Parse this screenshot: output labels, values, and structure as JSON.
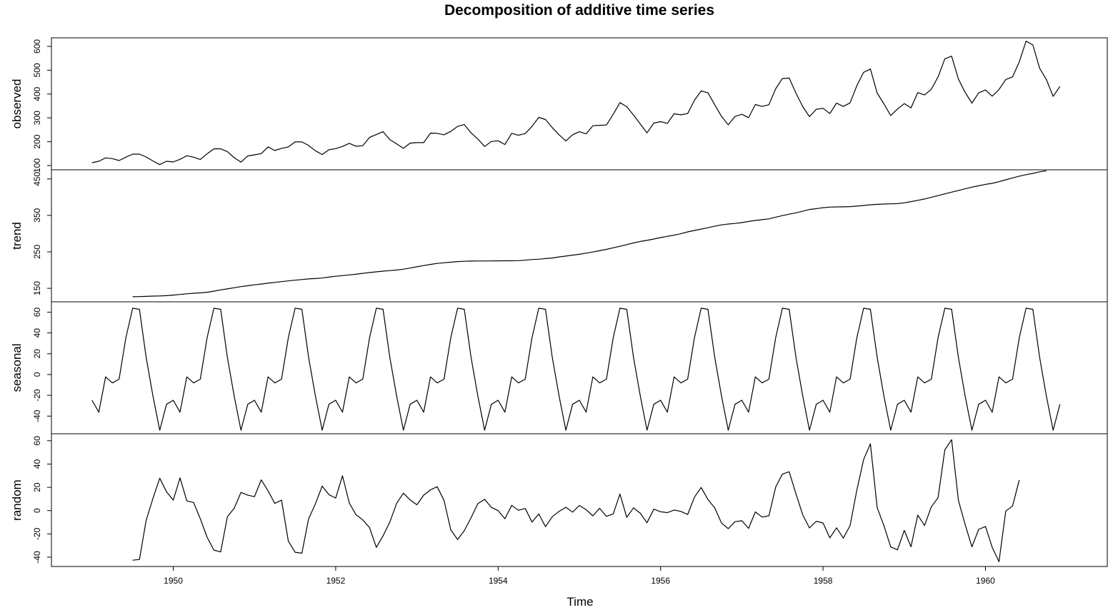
{
  "chart_data": {
    "type": "line",
    "title": "Decomposition of additive time series",
    "xlabel": "Time",
    "x_start": 1949,
    "frequency": 12,
    "xlim": [
      1948.5,
      1961.5
    ],
    "x_ticks": [
      1950,
      1952,
      1954,
      1956,
      1958,
      1960
    ],
    "panels": [
      {
        "name": "observed",
        "ylim": [
          82,
          636
        ],
        "y_ticks": [
          100,
          200,
          300,
          400,
          500,
          600
        ],
        "values": [
          112,
          118,
          132,
          129,
          121,
          135,
          148,
          148,
          136,
          119,
          104,
          118,
          115,
          126,
          141,
          135,
          125,
          149,
          170,
          170,
          158,
          133,
          114,
          140,
          145,
          150,
          178,
          163,
          172,
          178,
          199,
          199,
          184,
          162,
          146,
          166,
          171,
          180,
          193,
          181,
          183,
          218,
          230,
          242,
          209,
          191,
          172,
          194,
          196,
          196,
          236,
          235,
          229,
          243,
          264,
          272,
          237,
          211,
          180,
          201,
          204,
          188,
          235,
          227,
          234,
          264,
          302,
          293,
          259,
          229,
          203,
          229,
          242,
          233,
          267,
          269,
          270,
          315,
          364,
          347,
          312,
          274,
          237,
          278,
          284,
          277,
          317,
          313,
          318,
          374,
          413,
          405,
          355,
          306,
          271,
          306,
          315,
          301,
          356,
          348,
          355,
          422,
          465,
          467,
          404,
          347,
          305,
          336,
          340,
          318,
          362,
          348,
          363,
          435,
          491,
          505,
          404,
          359,
          310,
          337,
          360,
          342,
          406,
          396,
          420,
          472,
          548,
          559,
          463,
          407,
          362,
          405,
          417,
          391,
          419,
          461,
          472,
          535,
          622,
          606,
          508,
          461,
          390,
          432
        ]
      },
      {
        "name": "trend",
        "ylim": [
          113,
          475
        ],
        "y_ticks": [
          150,
          250,
          350,
          450
        ],
        "offset": 6,
        "values": [
          126.8,
          127.2,
          127.9,
          128.6,
          129.0,
          129.8,
          131.3,
          133.1,
          134.9,
          136.4,
          137.4,
          139.2,
          142.2,
          145.7,
          148.4,
          151.5,
          154.7,
          157.1,
          159.5,
          161.8,
          164.0,
          166.2,
          168.3,
          170.3,
          172.2,
          174.1,
          175.8,
          176.8,
          178.1,
          180.8,
          183.1,
          184.9,
          186.7,
          188.5,
          191.0,
          193.2,
          195.2,
          197.2,
          198.5,
          200.0,
          202.5,
          205.6,
          209.0,
          212.5,
          215.5,
          218.2,
          220.0,
          221.6,
          223.4,
          224.2,
          224.8,
          225.0,
          225.0,
          225.2,
          225.4,
          225.6,
          225.5,
          225.9,
          227.1,
          229.0,
          229.8,
          231.5,
          233.2,
          236.0,
          238.4,
          240.9,
          243.4,
          246.4,
          249.5,
          253.1,
          256.9,
          261.2,
          265.3,
          269.7,
          274.4,
          278.6,
          281.4,
          285.1,
          289.1,
          292.7,
          295.7,
          299.7,
          304.7,
          308.7,
          312.4,
          316.2,
          320.3,
          323.9,
          326.2,
          327.8,
          330.2,
          333.3,
          336.0,
          338.2,
          340.4,
          345.0,
          349.4,
          353.3,
          357.1,
          361.4,
          366.2,
          368.4,
          371.0,
          372.7,
          373.2,
          373.4,
          374.1,
          375.4,
          377.1,
          379.1,
          380.2,
          381.0,
          381.6,
          382.3,
          384.5,
          387.7,
          391.3,
          395.0,
          399.5,
          404.1,
          409.0,
          413.7,
          418.0,
          422.9,
          427.5,
          431.1,
          435.0,
          437.8,
          442.3,
          447.6,
          452.7,
          457.5,
          461.7,
          465.2,
          469.5,
          472.3
        ]
      },
      {
        "name": "seasonal",
        "ylim": [
          -57,
          70
        ],
        "y_ticks": [
          -40,
          -20,
          0,
          20,
          40,
          60
        ],
        "repeat": true,
        "values": [
          -24.75,
          -36.19,
          -2.24,
          -8.04,
          -4.51,
          35.4,
          63.83,
          62.82,
          16.52,
          -20.64,
          -53.59,
          -28.62
        ]
      },
      {
        "name": "random",
        "ylim": [
          -48,
          66
        ],
        "y_ticks": [
          -40,
          -20,
          0,
          20,
          40,
          60
        ],
        "offset": 6,
        "values": [
          -42.6,
          -42.0,
          -8.3,
          10.5,
          27.8,
          16.2,
          9.0,
          28.1,
          8.3,
          7.0,
          -7.0,
          -22.9,
          -33.9,
          -35.5,
          -5.3,
          2.0,
          15.6,
          13.2,
          12.0,
          26.4,
          17.0,
          6.2,
          9.0,
          -26.2,
          -35.8,
          -36.6,
          -7.0,
          5.8,
          21.0,
          13.7,
          10.8,
          29.9,
          6.6,
          -3.5,
          -8.0,
          -14.6,
          -31.6,
          -21.7,
          -9.8,
          6.2,
          15.0,
          9.2,
          5.0,
          13.3,
          17.8,
          20.5,
          8.8,
          -16.5,
          -24.8,
          -17.3,
          -6.1,
          6.0,
          9.7,
          2.8,
          0.0,
          -7.0,
          4.5,
          0.3,
          1.8,
          -9.8,
          -2.9,
          -13.8,
          -5.2,
          -0.7,
          2.9,
          -1.3,
          4.4,
          0.8,
          -4.5,
          2.0,
          -4.9,
          -2.8,
          14.3,
          -5.8,
          2.4,
          -2.3,
          -10.4,
          1.2,
          -1.0,
          -1.7,
          0.5,
          -0.7,
          -3.3,
          11.6,
          19.9,
          9.5,
          2.3,
          -10.7,
          -15.5,
          -9.5,
          -8.7,
          -15.3,
          -1.1,
          -5.5,
          -4.5,
          20.2,
          31.3,
          33.4,
          14.4,
          -3.6,
          -14.9,
          -9.2,
          -10.6,
          -23.4,
          -14.8,
          -23.6,
          -12.8,
          17.6,
          43.8,
          57.4,
          2.5,
          -12.9,
          -31.1,
          -33.7,
          -17.0,
          -31.1,
          -3.8,
          -12.8,
          3.3,
          11.1,
          52.2,
          61.0,
          8.8,
          -11.9,
          -31.1,
          -16.1,
          -13.6,
          -31.5,
          -43.9,
          -0.4,
          4.0,
          26.3
        ]
      }
    ]
  }
}
